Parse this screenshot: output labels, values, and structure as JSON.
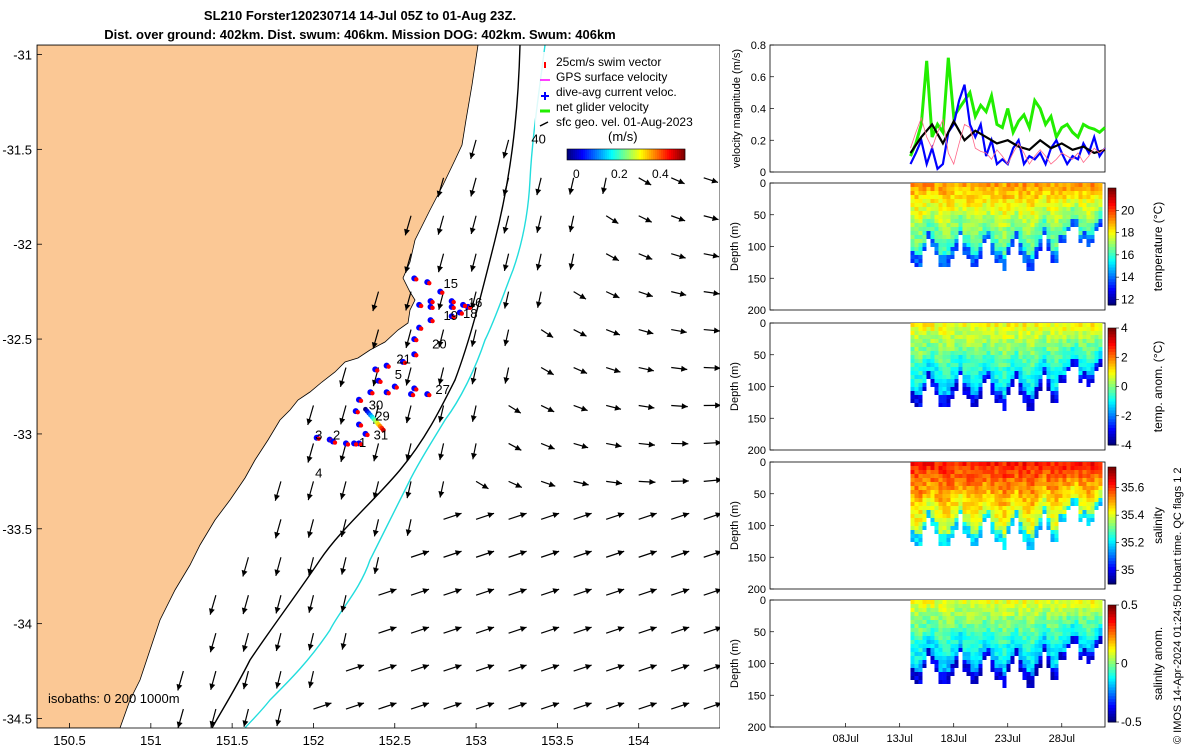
{
  "titles": {
    "line1": "SL210 Forster120230714 14-Jul 05Z to 01-Aug 23Z.",
    "line2": "Dist. over ground: 402km. Dist. swum: 406km. Mission DOG: 402km. Swum: 406km"
  },
  "footer_note": "© IMOS 14-Apr-2024 01:24:50 Hobart time. QC flags 1  2",
  "colors": {
    "land": "#fbc895",
    "sea": "#ffffff",
    "track_red": "#ff0000",
    "track_blue": "#0000ff",
    "isobath_200": "#000000",
    "isobath_1000": "#22dddd",
    "velocity_green": "#22ee00",
    "velocity_blue": "#0000ff",
    "velocity_black": "#000000"
  },
  "chart_data": [
    {
      "id": "map",
      "type": "scatter",
      "xlim": [
        150.3,
        154.5
      ],
      "ylim": [
        -34.55,
        -30.95
      ],
      "x_ticks": [
        150.5,
        151,
        151.5,
        152,
        152.5,
        153,
        153.5,
        154
      ],
      "y_ticks": [
        -31,
        -31.5,
        -32,
        -32.5,
        -33,
        -33.5,
        -34,
        -34.5
      ],
      "legend": {
        "placement": "top-right",
        "entries": [
          "25cm/s swim vector",
          "GPS surface velocity",
          "dive-avg current veloc.",
          "net glider velocity",
          "sfc geo. vel. 01-Aug-2023"
        ]
      },
      "colorbar": {
        "label": "(m/s)",
        "ticks": [
          "0",
          "0.2",
          "0.4"
        ],
        "range": [
          0,
          0.5
        ]
      },
      "isobath_label": "isobaths: 0   200  1000m",
      "day_labels": [
        {
          "text": "1",
          "lon": 152.28,
          "lat": -33.07
        },
        {
          "text": "2",
          "lon": 152.12,
          "lat": -33.03
        },
        {
          "text": "3",
          "lon": 152.01,
          "lat": -33.03
        },
        {
          "text": "4",
          "lon": 152.01,
          "lat": -33.23
        },
        {
          "text": "5",
          "lon": 152.5,
          "lat": -32.71
        },
        {
          "text": "15",
          "lon": 152.8,
          "lat": -32.23
        },
        {
          "text": "16",
          "lon": 152.95,
          "lat": -32.33
        },
        {
          "text": "18",
          "lon": 152.92,
          "lat": -32.39
        },
        {
          "text": "19",
          "lon": 152.8,
          "lat": -32.4
        },
        {
          "text": "20",
          "lon": 152.73,
          "lat": -32.55
        },
        {
          "text": "21",
          "lon": 152.51,
          "lat": -32.63
        },
        {
          "text": "27",
          "lon": 152.75,
          "lat": -32.79
        },
        {
          "text": "29",
          "lon": 152.38,
          "lat": -32.93
        },
        {
          "text": "30",
          "lon": 152.34,
          "lat": -32.87
        },
        {
          "text": "31",
          "lon": 152.37,
          "lat": -33.03
        },
        {
          "text": "40",
          "lon": 153.34,
          "lat": -31.47
        }
      ]
    },
    {
      "id": "velocity",
      "type": "line",
      "ylabel": "velocity magnitude (m/s)",
      "ylim": [
        0,
        0.8
      ],
      "y_ticks": [
        0,
        0.2,
        0.4,
        0.6,
        0.8
      ],
      "x_day_range": [
        1,
        32
      ],
      "series": [
        {
          "name": "net glider velocity",
          "x": [
            14,
            14.5,
            15,
            15.5,
            16,
            16.5,
            17,
            17.5,
            18,
            18.5,
            19,
            19.5,
            20,
            20.5,
            21,
            21.5,
            22,
            22.5,
            23,
            23.5,
            24,
            24.5,
            25,
            25.5,
            26,
            26.5,
            27,
            27.5,
            28,
            28.5,
            29,
            29.5,
            30,
            30.5,
            31,
            31.5,
            32
          ],
          "y": [
            0.1,
            0.18,
            0.3,
            0.7,
            0.22,
            0.3,
            0.25,
            0.72,
            0.35,
            0.4,
            0.45,
            0.5,
            0.35,
            0.42,
            0.38,
            0.48,
            0.3,
            0.28,
            0.4,
            0.25,
            0.32,
            0.36,
            0.28,
            0.45,
            0.4,
            0.3,
            0.35,
            0.22,
            0.28,
            0.3,
            0.25,
            0.22,
            0.3,
            0.28,
            0.27,
            0.25,
            0.28
          ]
        },
        {
          "name": "dive-avg current veloc.",
          "x": [
            14,
            14.5,
            15,
            15.5,
            16,
            16.5,
            17,
            17.5,
            18,
            18.5,
            19,
            19.5,
            20,
            20.5,
            21,
            21.5,
            22,
            22.5,
            23,
            23.5,
            24,
            24.5,
            25,
            25.5,
            26,
            26.5,
            27,
            27.5,
            28,
            28.5,
            29,
            29.5,
            30,
            30.5,
            31,
            31.5,
            32
          ],
          "y": [
            0.05,
            0.12,
            0.2,
            0.05,
            0.15,
            0.02,
            0.05,
            0.25,
            0.3,
            0.45,
            0.55,
            0.3,
            0.22,
            0.3,
            0.1,
            0.2,
            0.05,
            0.08,
            0.05,
            0.15,
            0.2,
            0.05,
            0.1,
            0.08,
            0.12,
            0.05,
            0.15,
            0.2,
            0.12,
            0.05,
            0.1,
            0.08,
            0.18,
            0.12,
            0.22,
            0.1,
            0.15
          ]
        },
        {
          "name": "GPS surface velocity",
          "x": [
            14,
            15,
            16,
            17,
            18,
            19,
            20,
            21,
            22,
            23,
            24,
            25,
            26,
            27,
            28,
            29,
            30,
            31,
            32
          ],
          "y": [
            0.12,
            0.22,
            0.3,
            0.18,
            0.32,
            0.2,
            0.26,
            0.22,
            0.18,
            0.2,
            0.16,
            0.14,
            0.2,
            0.15,
            0.18,
            0.14,
            0.16,
            0.12,
            0.14
          ]
        },
        {
          "name": "25cm/s swim vector",
          "x": [
            14,
            14.5,
            15,
            15.5,
            16,
            16.5,
            17,
            17.5,
            18,
            18.5,
            19,
            19.5,
            20,
            20.5,
            21,
            21.5,
            22,
            22.5,
            23,
            23.5,
            24,
            24.5,
            25,
            25.5,
            26,
            26.5,
            27,
            27.5,
            28,
            28.5,
            29,
            29.5,
            30,
            30.5,
            31,
            31.5,
            32
          ],
          "y": [
            0.15,
            0.25,
            0.34,
            0.22,
            0.15,
            0.25,
            0.33,
            0.12,
            0.05,
            0.18,
            0.3,
            0.28,
            0.15,
            0.13,
            0.12,
            0.08,
            0.14,
            0.1,
            0.05,
            0.12,
            0.18,
            0.12,
            0.05,
            0.1,
            0.14,
            0.1,
            0.05,
            0.08,
            0.12,
            0.1,
            0.08,
            0.12,
            0.06,
            0.1,
            0.15,
            0.12,
            0.15
          ]
        }
      ]
    },
    {
      "id": "temperature",
      "type": "heatmap",
      "ylabel": "Depth (m)",
      "ylim": [
        200,
        0
      ],
      "y_ticks": [
        0,
        50,
        100,
        150,
        200
      ],
      "cbar_label": "temperature (°C)",
      "cbar_ticks": [
        "12",
        "14",
        "16",
        "18",
        "20"
      ],
      "cbar_range": [
        11.5,
        22
      ],
      "palette": "jet"
    },
    {
      "id": "temp-anom",
      "type": "heatmap",
      "ylabel": "Depth (m)",
      "ylim": [
        200,
        0
      ],
      "y_ticks": [
        0,
        50,
        100,
        150,
        200
      ],
      "cbar_label": "temp. anom. (°C)",
      "cbar_ticks": [
        "-4",
        "-2",
        "0",
        "2",
        "4"
      ],
      "cbar_range": [
        -4,
        4
      ],
      "palette": "jet"
    },
    {
      "id": "salinity",
      "type": "heatmap",
      "ylabel": "Depth (m)",
      "ylim": [
        200,
        0
      ],
      "y_ticks": [
        0,
        50,
        100,
        150,
        200
      ],
      "cbar_label": "salinity",
      "cbar_ticks": [
        "35",
        "35.2",
        "35.4",
        "35.6"
      ],
      "cbar_range": [
        34.9,
        35.75
      ],
      "palette": "jet"
    },
    {
      "id": "sal-anom",
      "type": "heatmap",
      "ylabel": "Depth (m)",
      "ylim": [
        200,
        0
      ],
      "y_ticks": [
        0,
        50,
        100,
        150,
        200
      ],
      "cbar_label": "salinity anom.",
      "cbar_ticks": [
        "-0.5",
        "0",
        "0.5"
      ],
      "cbar_range": [
        -0.5,
        0.5
      ],
      "palette": "jet",
      "x_tick_labels": [
        "08Jul",
        "13Jul",
        "18Jul",
        "23Jul",
        "28Jul"
      ],
      "x_tick_days": [
        8,
        13,
        18,
        23,
        28
      ]
    }
  ]
}
